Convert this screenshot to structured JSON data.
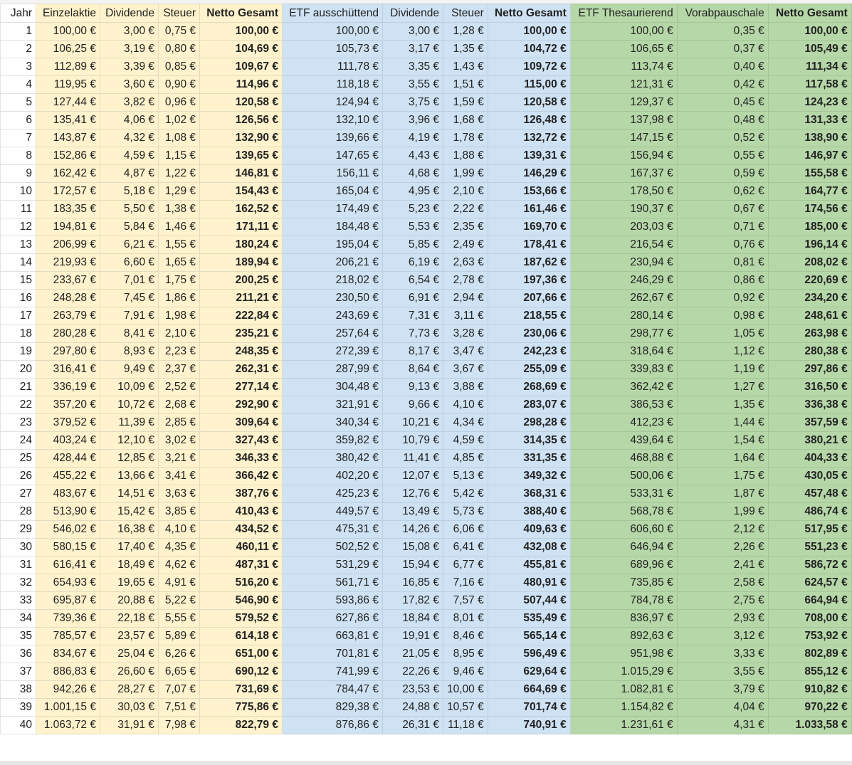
{
  "colors": {
    "stock": "#fff2cc",
    "etf_dist": "#cfe2f3",
    "etf_acc": "#b6d7a8"
  },
  "currency": "€",
  "headers": [
    "Jahr",
    "Einzelaktie",
    "Dividende",
    "Steuer",
    "Netto Gesamt",
    "ETF ausschüttend",
    "Dividende",
    "Steuer",
    "Netto Gesamt",
    "ETF Thesaurierend",
    "Vorabpauschale",
    "Netto Gesamt"
  ],
  "rows": [
    [
      "1",
      "100,00",
      "3,00",
      "0,75",
      "100,00",
      "100,00",
      "3,00",
      "1,28",
      "100,00",
      "100,00",
      "0,35",
      "100,00"
    ],
    [
      "2",
      "106,25",
      "3,19",
      "0,80",
      "104,69",
      "105,73",
      "3,17",
      "1,35",
      "104,72",
      "106,65",
      "0,37",
      "105,49"
    ],
    [
      "3",
      "112,89",
      "3,39",
      "0,85",
      "109,67",
      "111,78",
      "3,35",
      "1,43",
      "109,72",
      "113,74",
      "0,40",
      "111,34"
    ],
    [
      "4",
      "119,95",
      "3,60",
      "0,90",
      "114,96",
      "118,18",
      "3,55",
      "1,51",
      "115,00",
      "121,31",
      "0,42",
      "117,58"
    ],
    [
      "5",
      "127,44",
      "3,82",
      "0,96",
      "120,58",
      "124,94",
      "3,75",
      "1,59",
      "120,58",
      "129,37",
      "0,45",
      "124,23"
    ],
    [
      "6",
      "135,41",
      "4,06",
      "1,02",
      "126,56",
      "132,10",
      "3,96",
      "1,68",
      "126,48",
      "137,98",
      "0,48",
      "131,33"
    ],
    [
      "7",
      "143,87",
      "4,32",
      "1,08",
      "132,90",
      "139,66",
      "4,19",
      "1,78",
      "132,72",
      "147,15",
      "0,52",
      "138,90"
    ],
    [
      "8",
      "152,86",
      "4,59",
      "1,15",
      "139,65",
      "147,65",
      "4,43",
      "1,88",
      "139,31",
      "156,94",
      "0,55",
      "146,97"
    ],
    [
      "9",
      "162,42",
      "4,87",
      "1,22",
      "146,81",
      "156,11",
      "4,68",
      "1,99",
      "146,29",
      "167,37",
      "0,59",
      "155,58"
    ],
    [
      "10",
      "172,57",
      "5,18",
      "1,29",
      "154,43",
      "165,04",
      "4,95",
      "2,10",
      "153,66",
      "178,50",
      "0,62",
      "164,77"
    ],
    [
      "11",
      "183,35",
      "5,50",
      "1,38",
      "162,52",
      "174,49",
      "5,23",
      "2,22",
      "161,46",
      "190,37",
      "0,67",
      "174,56"
    ],
    [
      "12",
      "194,81",
      "5,84",
      "1,46",
      "171,11",
      "184,48",
      "5,53",
      "2,35",
      "169,70",
      "203,03",
      "0,71",
      "185,00"
    ],
    [
      "13",
      "206,99",
      "6,21",
      "1,55",
      "180,24",
      "195,04",
      "5,85",
      "2,49",
      "178,41",
      "216,54",
      "0,76",
      "196,14"
    ],
    [
      "14",
      "219,93",
      "6,60",
      "1,65",
      "189,94",
      "206,21",
      "6,19",
      "2,63",
      "187,62",
      "230,94",
      "0,81",
      "208,02"
    ],
    [
      "15",
      "233,67",
      "7,01",
      "1,75",
      "200,25",
      "218,02",
      "6,54",
      "2,78",
      "197,36",
      "246,29",
      "0,86",
      "220,69"
    ],
    [
      "16",
      "248,28",
      "7,45",
      "1,86",
      "211,21",
      "230,50",
      "6,91",
      "2,94",
      "207,66",
      "262,67",
      "0,92",
      "234,20"
    ],
    [
      "17",
      "263,79",
      "7,91",
      "1,98",
      "222,84",
      "243,69",
      "7,31",
      "3,11",
      "218,55",
      "280,14",
      "0,98",
      "248,61"
    ],
    [
      "18",
      "280,28",
      "8,41",
      "2,10",
      "235,21",
      "257,64",
      "7,73",
      "3,28",
      "230,06",
      "298,77",
      "1,05",
      "263,98"
    ],
    [
      "19",
      "297,80",
      "8,93",
      "2,23",
      "248,35",
      "272,39",
      "8,17",
      "3,47",
      "242,23",
      "318,64",
      "1,12",
      "280,38"
    ],
    [
      "20",
      "316,41",
      "9,49",
      "2,37",
      "262,31",
      "287,99",
      "8,64",
      "3,67",
      "255,09",
      "339,83",
      "1,19",
      "297,86"
    ],
    [
      "21",
      "336,19",
      "10,09",
      "2,52",
      "277,14",
      "304,48",
      "9,13",
      "3,88",
      "268,69",
      "362,42",
      "1,27",
      "316,50"
    ],
    [
      "22",
      "357,20",
      "10,72",
      "2,68",
      "292,90",
      "321,91",
      "9,66",
      "4,10",
      "283,07",
      "386,53",
      "1,35",
      "336,38"
    ],
    [
      "23",
      "379,52",
      "11,39",
      "2,85",
      "309,64",
      "340,34",
      "10,21",
      "4,34",
      "298,28",
      "412,23",
      "1,44",
      "357,59"
    ],
    [
      "24",
      "403,24",
      "12,10",
      "3,02",
      "327,43",
      "359,82",
      "10,79",
      "4,59",
      "314,35",
      "439,64",
      "1,54",
      "380,21"
    ],
    [
      "25",
      "428,44",
      "12,85",
      "3,21",
      "346,33",
      "380,42",
      "11,41",
      "4,85",
      "331,35",
      "468,88",
      "1,64",
      "404,33"
    ],
    [
      "26",
      "455,22",
      "13,66",
      "3,41",
      "366,42",
      "402,20",
      "12,07",
      "5,13",
      "349,32",
      "500,06",
      "1,75",
      "430,05"
    ],
    [
      "27",
      "483,67",
      "14,51",
      "3,63",
      "387,76",
      "425,23",
      "12,76",
      "5,42",
      "368,31",
      "533,31",
      "1,87",
      "457,48"
    ],
    [
      "28",
      "513,90",
      "15,42",
      "3,85",
      "410,43",
      "449,57",
      "13,49",
      "5,73",
      "388,40",
      "568,78",
      "1,99",
      "486,74"
    ],
    [
      "29",
      "546,02",
      "16,38",
      "4,10",
      "434,52",
      "475,31",
      "14,26",
      "6,06",
      "409,63",
      "606,60",
      "2,12",
      "517,95"
    ],
    [
      "30",
      "580,15",
      "17,40",
      "4,35",
      "460,11",
      "502,52",
      "15,08",
      "6,41",
      "432,08",
      "646,94",
      "2,26",
      "551,23"
    ],
    [
      "31",
      "616,41",
      "18,49",
      "4,62",
      "487,31",
      "531,29",
      "15,94",
      "6,77",
      "455,81",
      "689,96",
      "2,41",
      "586,72"
    ],
    [
      "32",
      "654,93",
      "19,65",
      "4,91",
      "516,20",
      "561,71",
      "16,85",
      "7,16",
      "480,91",
      "735,85",
      "2,58",
      "624,57"
    ],
    [
      "33",
      "695,87",
      "20,88",
      "5,22",
      "546,90",
      "593,86",
      "17,82",
      "7,57",
      "507,44",
      "784,78",
      "2,75",
      "664,94"
    ],
    [
      "34",
      "739,36",
      "22,18",
      "5,55",
      "579,52",
      "627,86",
      "18,84",
      "8,01",
      "535,49",
      "836,97",
      "2,93",
      "708,00"
    ],
    [
      "35",
      "785,57",
      "23,57",
      "5,89",
      "614,18",
      "663,81",
      "19,91",
      "8,46",
      "565,14",
      "892,63",
      "3,12",
      "753,92"
    ],
    [
      "36",
      "834,67",
      "25,04",
      "6,26",
      "651,00",
      "701,81",
      "21,05",
      "8,95",
      "596,49",
      "951,98",
      "3,33",
      "802,89"
    ],
    [
      "37",
      "886,83",
      "26,60",
      "6,65",
      "690,12",
      "741,99",
      "22,26",
      "9,46",
      "629,64",
      "1.015,29",
      "3,55",
      "855,12"
    ],
    [
      "38",
      "942,26",
      "28,27",
      "7,07",
      "731,69",
      "784,47",
      "23,53",
      "10,00",
      "664,69",
      "1.082,81",
      "3,79",
      "910,82"
    ],
    [
      "39",
      "1.001,15",
      "30,03",
      "7,51",
      "775,86",
      "829,38",
      "24,88",
      "10,57",
      "701,74",
      "1.154,82",
      "4,04",
      "970,22"
    ],
    [
      "40",
      "1.063,72",
      "31,91",
      "7,98",
      "822,79",
      "876,86",
      "26,31",
      "11,18",
      "740,91",
      "1.231,61",
      "4,31",
      "1.033,58"
    ]
  ]
}
